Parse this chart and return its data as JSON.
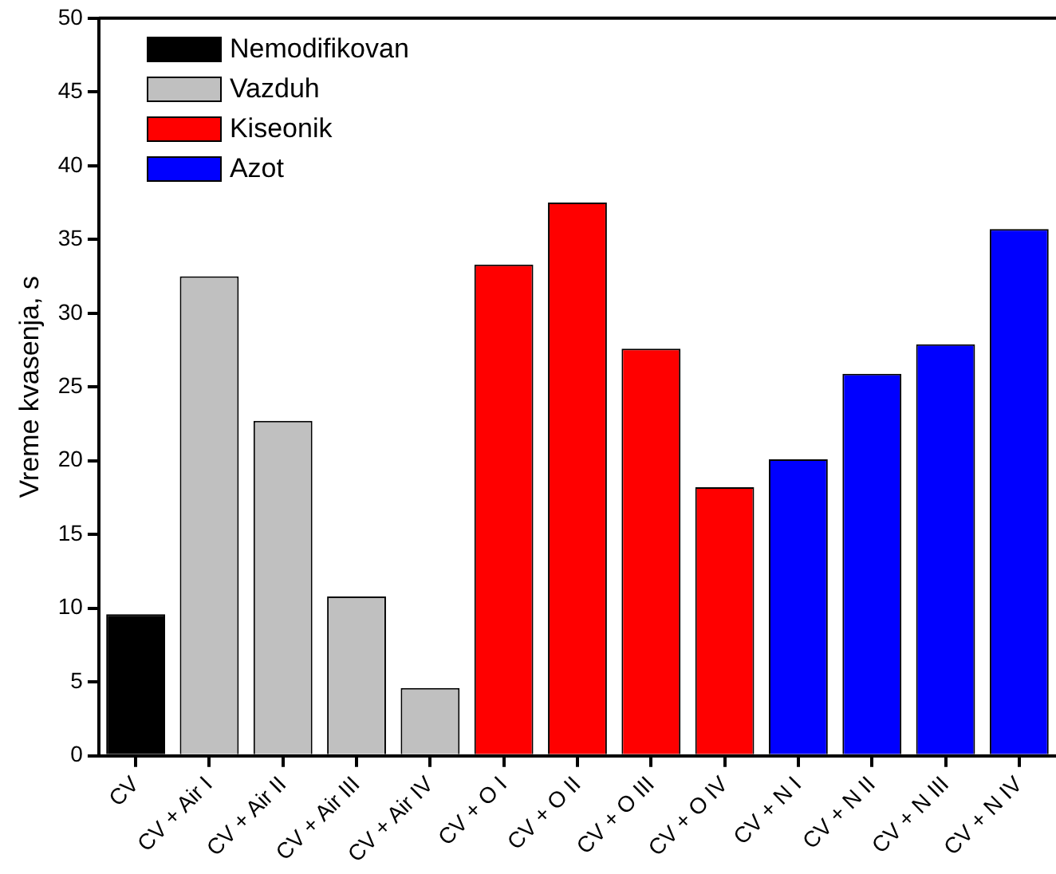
{
  "chart_data": {
    "type": "bar",
    "ylabel": "Vreme kvasenja, s",
    "categories": [
      "CV",
      "CV + Air I",
      "CV + Air II",
      "CV + Air III",
      "CV + Air IV",
      "CV + O I",
      "CV + O II",
      "CV + O III",
      "CV + O IV",
      "CV + N I",
      "CV + N II",
      "CV + N III",
      "CV + N IV"
    ],
    "series": [
      {
        "name": "Nemodifikovan",
        "color": "#000000",
        "values": [
          9.6,
          null,
          null,
          null,
          null,
          null,
          null,
          null,
          null,
          null,
          null,
          null,
          null
        ]
      },
      {
        "name": "Vazduh",
        "color": "#c0c0c0",
        "values": [
          null,
          32.5,
          22.7,
          10.8,
          4.6,
          null,
          null,
          null,
          null,
          null,
          null,
          null,
          null
        ]
      },
      {
        "name": "Kiseonik",
        "color": "#ff0000",
        "values": [
          null,
          null,
          null,
          null,
          null,
          33.3,
          37.5,
          27.6,
          18.2,
          null,
          null,
          null,
          null
        ]
      },
      {
        "name": "Azot",
        "color": "#0000ff",
        "values": [
          null,
          null,
          null,
          null,
          null,
          null,
          null,
          null,
          null,
          20.1,
          25.9,
          27.9,
          35.7
        ]
      }
    ],
    "ylim": [
      0,
      50
    ],
    "yticks": [
      0,
      5,
      10,
      15,
      20,
      25,
      30,
      35,
      40,
      45,
      50
    ],
    "grid": false,
    "legend": "top left"
  }
}
